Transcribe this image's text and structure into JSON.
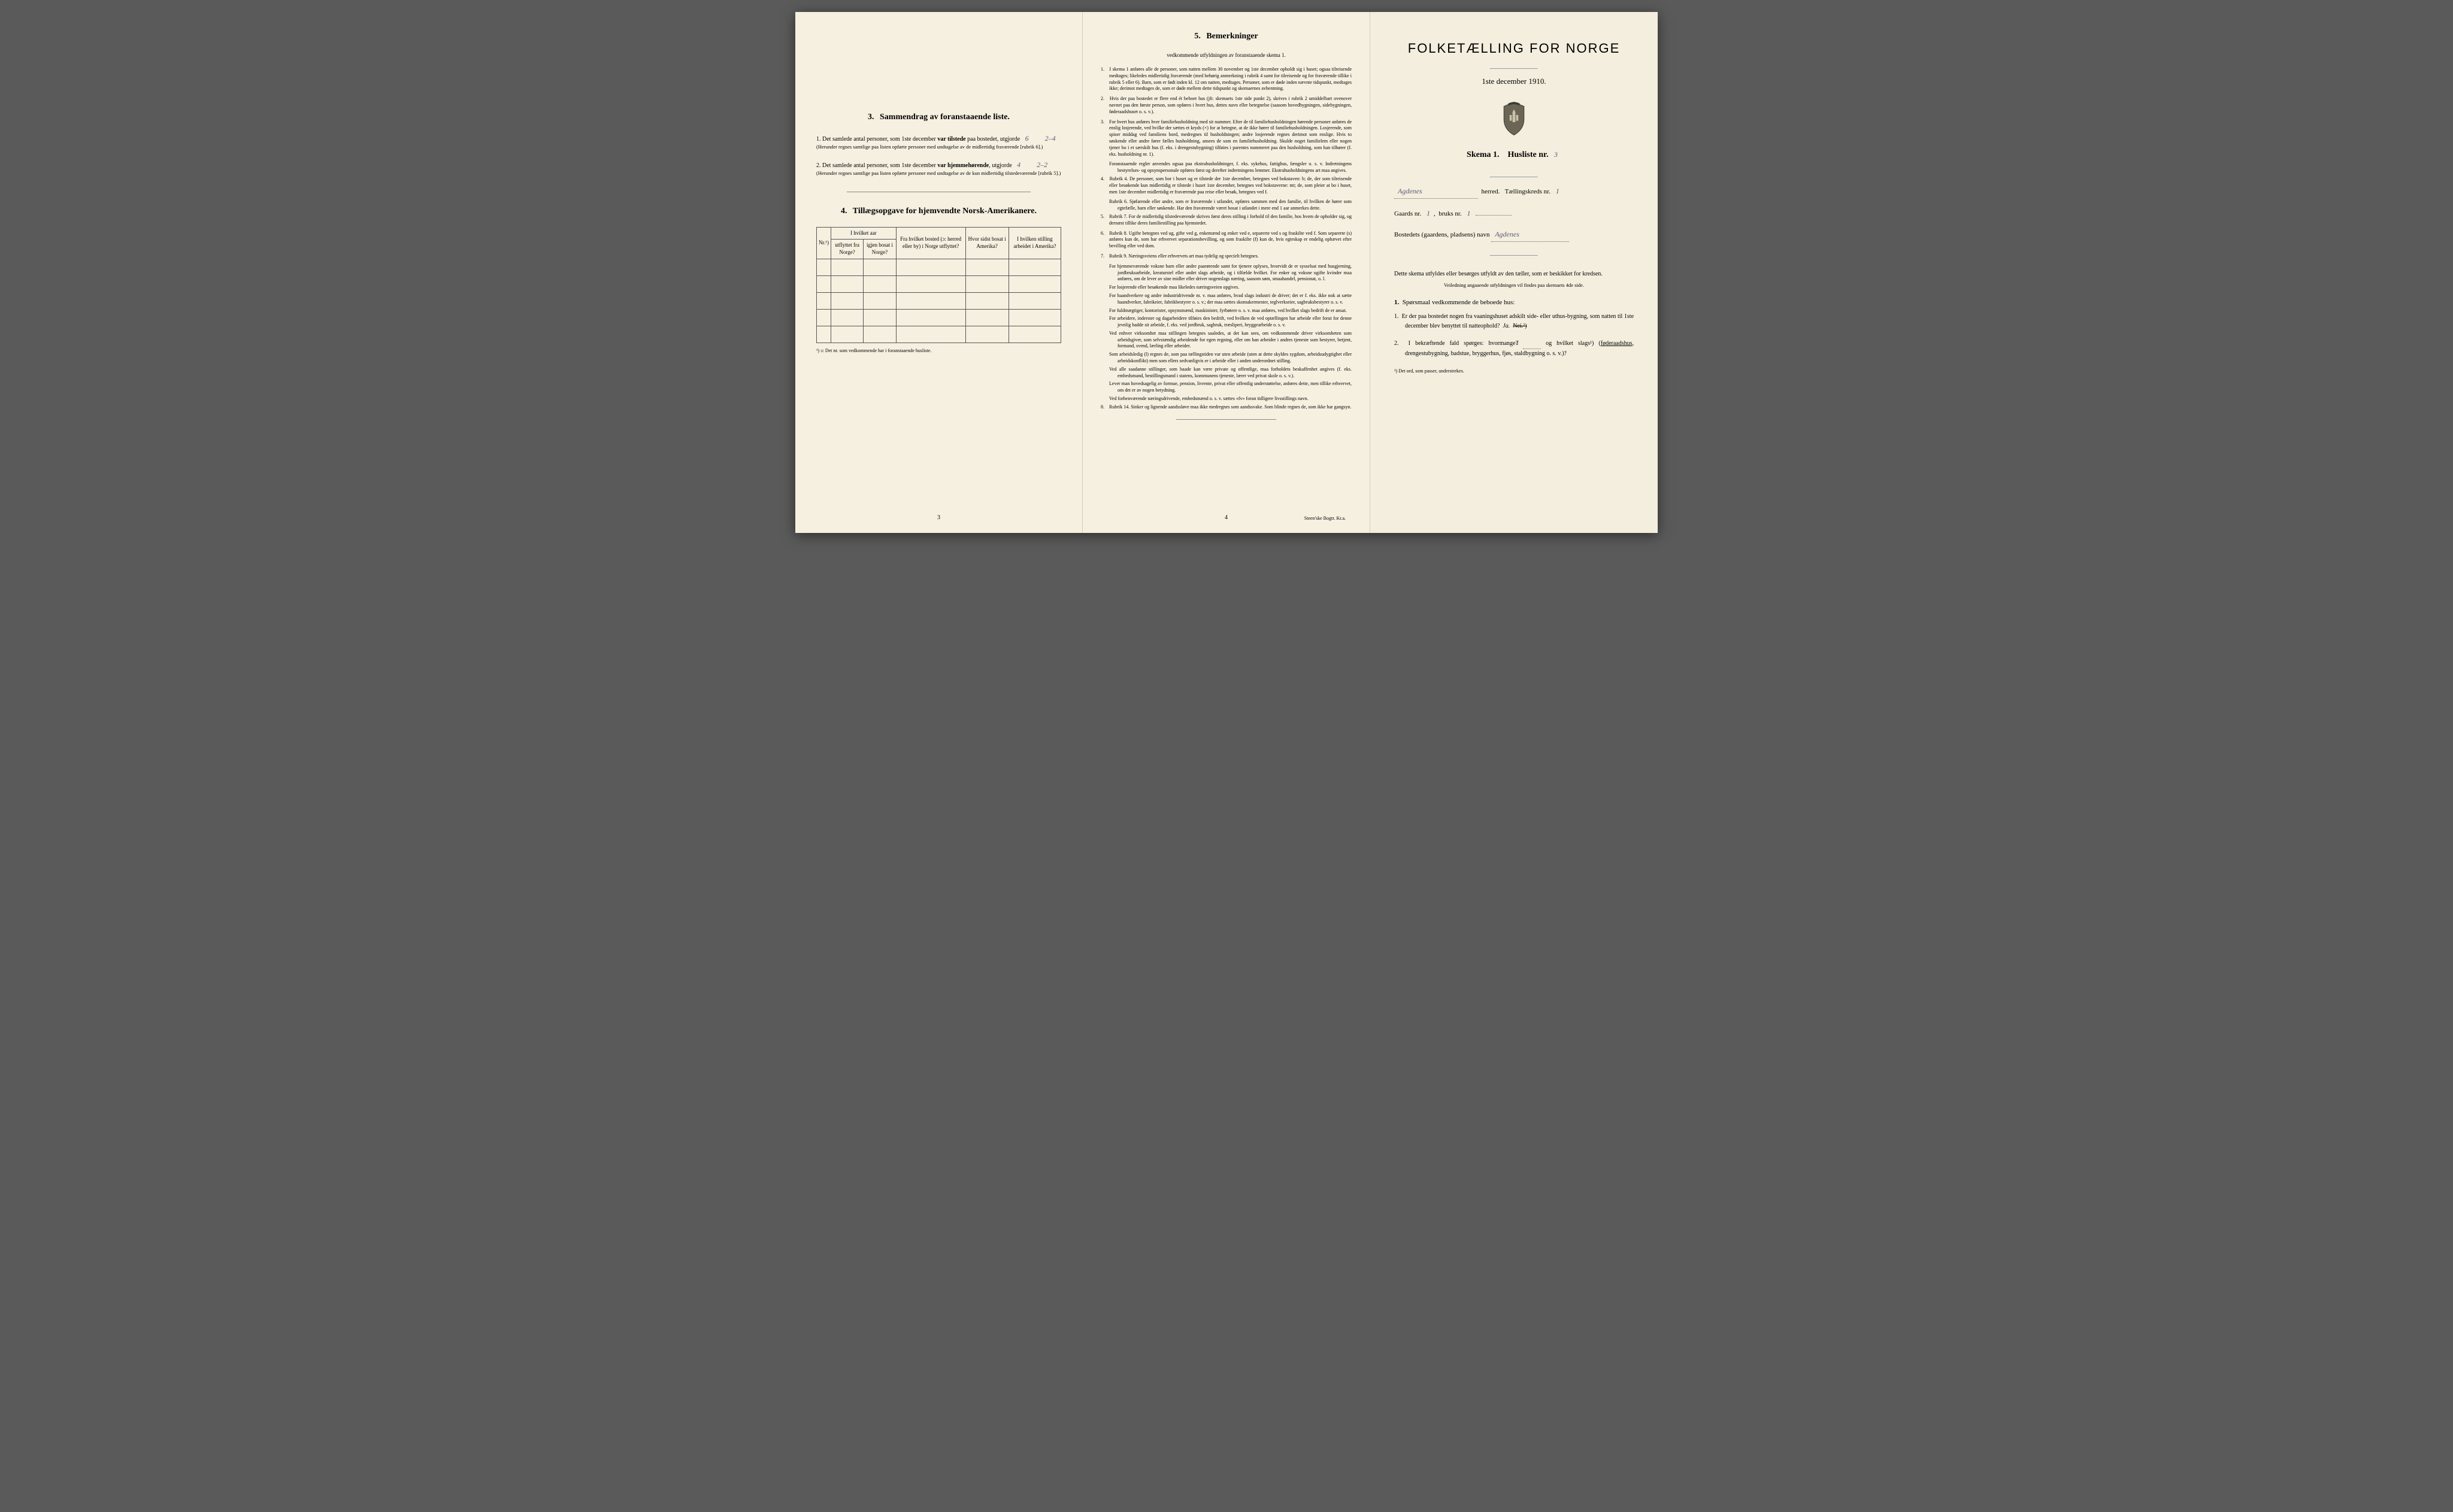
{
  "colors": {
    "page_bg": "#f5f0e0",
    "page_right_bg": "#f3eedd",
    "body_bg": "#5a5a5a",
    "text": "#2a2a2a",
    "handwriting": "#5a5a7a",
    "border": "#555555"
  },
  "typography": {
    "body_font": "Georgia, Times New Roman, serif",
    "title_font": "Arial Narrow",
    "handwriting_font": "cursive",
    "body_size_pt": 10,
    "fine_size_pt": 8,
    "title_size_pt": 22
  },
  "left": {
    "spacer_top": true,
    "section3": {
      "number": "3.",
      "title": "Sammendrag av foranstaaende liste.",
      "item1": {
        "num": "1.",
        "text_a": "Det samlede antal personer, som 1ste december ",
        "bold_a": "var tilstede",
        "text_b": " paa bostedet, utgjorde ",
        "handwritten_a": "6",
        "handwritten_b": "2–4",
        "note": "(Herunder regnes samtlige paa listen opførte personer med undtagelse av de midlertidig fraværende [rubrik 6].)"
      },
      "item2": {
        "num": "2.",
        "text_a": "Det samlede antal personer, som 1ste december ",
        "bold_a": "var hjemmehørende",
        "text_b": ", utgjorde ",
        "handwritten_a": "4",
        "handwritten_b": "2–2",
        "note": "(Herunder regnes samtlige paa listen opførte personer med undtagelse av de kun midlertidig tilstedeværende [rubrik 5].)"
      }
    },
    "section4": {
      "number": "4.",
      "title": "Tillægsopgave for hjemvendte Norsk-Amerikanere.",
      "table": {
        "headers": {
          "h1": "Nr.¹)",
          "h2_group": "I hvilket aar",
          "h2a": "utflyttet fra Norge?",
          "h2b": "igjen bosat i Norge?",
          "h3": "Fra hvilket bosted (ɔ: herred eller by) i Norge utflyttet?",
          "h4": "Hvor sidst bosat i Amerika?",
          "h5": "I hvilken stilling arbeidet i Amerika?"
        },
        "empty_rows": 5
      },
      "footnote": "¹) ɔ: Det nr. som vedkommende har i foranstaaende husliste."
    },
    "page_number": "3"
  },
  "center": {
    "heading_number": "5.",
    "heading": "Bemerkninger",
    "subheading": "vedkommende utfyldningen av foranstaaende skema 1.",
    "remarks": [
      {
        "num": "1.",
        "text": "I skema 1 anføres alle de personer, som natten mellem 30 november og 1ste december opholdt sig i huset; ogsaa tilreisende medtages; likeledes midlertidig fraværende (med behørig anmerkning i rubrik 4 samt for tilreisende og for fraværende tillike i rubrik 5 eller 6). Barn, som er født inden kl. 12 om natten, medtages. Personer, som er døde inden nævnte tidspunkt, medtages ikke; derimot medtages de, som er døde mellem dette tidspunkt og skemaernes avhentning."
      },
      {
        "num": "2.",
        "text": "Hvis der paa bostedet er flere end ét beboet hus (jfr. skemaets 1ste side punkt 2), skrives i rubrik 2 umiddelbart ovenover navnet paa den første person, som opføres i hvert hus, dettes navn eller betegnelse (saasom hovedbygningen, sidebygningen, føderaadshuset o. s. v.)."
      },
      {
        "num": "3.",
        "text": "For hvert hus anføres hver familiehusholdning med sit nummer. Efter de til familiehusholdningen hørende personer anføres de enslig losjerende, ved hvilke der sættes et kryds (×) for at betegne, at de ikke hører til familiehusholdningen. Losjerende, som spiser middag ved familiens bord, medregnes til husholdningen; andre losjerende regnes derimot som enslige. Hvis to søskende eller andre fører fælles husholdning, ansees de som en familiehusholdning. Skulde noget familielem eller nogen tjener bo i et særskilt hus (f. eks. i drengestubygning) tilføies i parentes nummeret paa den husholdning, som han tilhører (f. eks. husholdning nr. 1).",
        "sub": "Foranstaaende regler anvendes ogsaa paa ekstrahusholdninger, f. eks. sykehus, fattighus, fængsler o. s. v. Indretningens bestyrelses- og opsynspersonale opføres først og derefter indretningens lemmer. Ekstrahusholdningens art maa angives."
      },
      {
        "num": "4.",
        "text": "Rubrik 4. De personer, som bor i huset og er tilstede der 1ste december, betegnes ved bokstaven: b; de, der som tilreisende eller besøkende kun midlertidig er tilstede i huset 1ste december, betegnes ved bokstaverne: mt; de, som pleier at bo i huset, men 1ste december midlertidig er fraværende paa reise eller besøk, betegnes ved f.",
        "sub": "Rubrik 6. Sjøfarende eller andre, som er fraværende i utlandet, opføres sammen med den familie, til hvilken de hører som egtefælle, barn eller søskende. Har den fraværende været bosat i utlandet i mere end 1 aar anmerkes dette."
      },
      {
        "num": "5.",
        "text": "Rubrik 7. For de midlertidig tilstedeværende skrives først deres stilling i forhold til den familie, hos hvem de opholder sig, og dernæst tillike deres familiestilling paa hjemstedet."
      },
      {
        "num": "6.",
        "text": "Rubrik 8. Ugifte betegnes ved ug, gifte ved g, enkemænd og enker ved e, separerte ved s og fraskilte ved f. Som separerte (s) anføres kun de, som har erhvervet separationsbevilling, og som fraskilte (f) kun de, hvis egteskap er endelig ophævet efter bevilling eller ved dom."
      },
      {
        "num": "7.",
        "text": "Rubrik 9. Næringsveiens eller erhvervets art maa tydelig og specielt betegnes.",
        "subs": [
          "For hjemmeværende voksne barn eller andre paarørende samt for tjenere oplyses, hvorvidt de er sysselsat med husgjerning, jordbruksarbeide, kreaturstel eller andet slags arbeide, og i tilfælde hvilket. For enker og voksne ugifte kvinder maa anføres, om de lever av sine midler eller driver nogenslags næring, saasom søm, smaahandel, pensionat, o. l.",
          "For losjerende eller besøkende maa likeledes næringsveien opgives.",
          "For haandverkere og andre industridrivende m. v. maa anføres, hvad slags industri de driver; det er f. eks. ikke nok at sætte haandverker, fabrikeier, fabrikbestyrer o. s. v.; der maa sættes skomakermester, teglverkseier, sagbruksbestyrer o. s. v.",
          "For fuldmægtiger, kontorister, opsynsmænd, maskinister, fyrbøtere o. s. v. maa anføres, ved hvilket slags bedrift de er ansat.",
          "For arbeidere, inderster og dagarbeidere tilføies den bedrift, ved hvilken de ved optællingen har arbeide eller forut for denne jevnlig hadde sit arbeide, f. eks. ved jordbruk, sagbruk, træsliperi, bryggearbeide o. s. v.",
          "Ved enhver virksomhet maa stillingen betegnes saaledes, at det kan sees, om vedkommende driver virksomheten som arbeidsgiver, som selvstændig arbeidende for egen regning, eller om han arbeider i andres tjeneste som bestyrer, betjent, formand, svend, lærling eller arbeider.",
          "Som arbeidsledig (l) regnes de, som paa tællingstiden var uten arbeide (uten at dette skyldes sygdom, arbeidsudygtighet eller arbeidskonflikt) men som ellers sedvanligvis er i arbeide eller i anden underordnet stilling.",
          "Ved alle saadanne stillinger, som baade kan være private og offentlige, maa forholdets beskaffenhet angives (f. eks. embedsmand, bestillingsmand i statens, kommunens tjeneste, lærer ved privat skole o. s. v.).",
          "Lever man hovedsagelig av formue, pension, livrente, privat eller offentlig understøttelse, anføres dette, men tillike erhvervet, om det er av nogen betydning.",
          "Ved forhenværende næringsdrivende, embedsmænd o. s. v. sættes «fv» foran tidligere livsstillings navn."
        ]
      },
      {
        "num": "8.",
        "text": "Rubrik 14. Sinker og lignende aandssløve maa ikke medregnes som aandssvake. Som blinde regnes de, som ikke har gangsyn."
      }
    ],
    "page_number": "4",
    "printer": "Steen'ske Bogtr. Kr.a."
  },
  "right": {
    "title": "FOLKETÆLLING FOR NORGE",
    "subtitle": "1ste december 1910.",
    "skema_label": "Skema 1.",
    "husliste_label": "Husliste nr.",
    "husliste_nr": "3",
    "herred_value": "Agdenes",
    "herred_label": "herred.",
    "tkreds_label": "Tællingskreds nr.",
    "tkreds_nr": "1",
    "gaards_label": "Gaards nr.",
    "gaards_nr": "1",
    "bruks_label": "bruks nr.",
    "bruks_nr": "1",
    "bosted_label": "Bostedets (gaardens, pladsens) navn",
    "bosted_value": "Agdenes",
    "instruction": "Dette skema utfyldes eller besørges utfyldt av den tæller, som er beskikket for kredsen.",
    "instruction_sub": "Veiledning angaaende utfyldningen vil findes paa skemaets 4de side.",
    "q_heading_num": "1.",
    "q_heading": "Spørsmaal vedkommende de beboede hus:",
    "q1": {
      "num": "1.",
      "text": "Er der paa bostedet nogen fra vaaningshuset adskilt side- eller uthus-bygning, som natten til 1ste december blev benyttet til natteophold?",
      "ja": "Ja.",
      "nei": "Nei.²)"
    },
    "q2": {
      "num": "2.",
      "text_a": "I bekræftende fald spørges: hvormange? ",
      "value": "1",
      "text_b": " og hvilket slags¹) (",
      "underlined": "føderaadshus",
      "text_c": ", drengestubygning, badstue, bryggerhus, fjøs, staldbygning o. s. v.)?"
    },
    "footnote": "¹) Det ord, som passer, understrekes."
  }
}
